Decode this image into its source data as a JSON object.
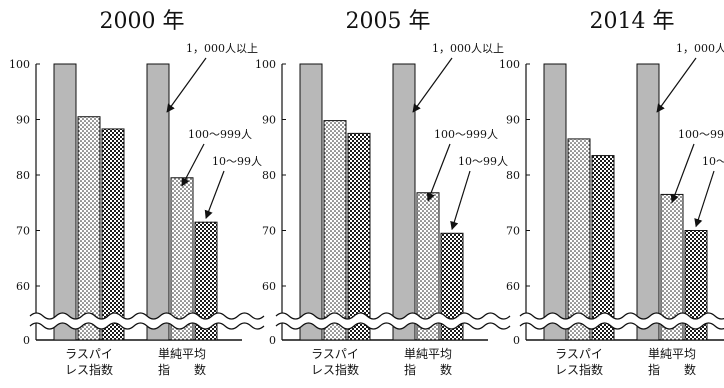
{
  "chart_data": [
    {
      "type": "bar",
      "title": "2000 年",
      "categories": [
        "ラスパイ\nレス指数",
        "単純平均\n指　　数"
      ],
      "series": [
        {
          "name": "1，000人以上",
          "values": [
            100,
            100
          ]
        },
        {
          "name": "100～999人",
          "values": [
            90.5,
            79.5
          ]
        },
        {
          "name": "10～99人",
          "values": [
            88.3,
            71.5
          ]
        }
      ],
      "y_ticks": [
        "0",
        "60",
        "70",
        "80",
        "90",
        "100"
      ],
      "ylim": [
        55,
        100
      ],
      "axis_break": true,
      "grid": false
    },
    {
      "type": "bar",
      "title": "2005 年",
      "categories": [
        "ラスパイ\nレス指数",
        "単純平均\n指　　数"
      ],
      "series": [
        {
          "name": "1，000人以上",
          "values": [
            100,
            100
          ]
        },
        {
          "name": "100～999人",
          "values": [
            89.8,
            76.8
          ]
        },
        {
          "name": "10～99人",
          "values": [
            87.5,
            69.5
          ]
        }
      ],
      "y_ticks": [
        "0",
        "60",
        "70",
        "80",
        "90",
        "100"
      ],
      "ylim": [
        55,
        100
      ],
      "axis_break": true,
      "grid": false
    },
    {
      "type": "bar",
      "title": "2014 年",
      "categories": [
        "ラスパイ\nレス指数",
        "単純平均\n指　　数"
      ],
      "series": [
        {
          "name": "1，000人以上",
          "values": [
            100,
            100
          ]
        },
        {
          "name": "100～999人",
          "values": [
            86.5,
            76.5
          ]
        },
        {
          "name": "10～99人",
          "values": [
            83.5,
            70
          ]
        }
      ],
      "y_ticks": [
        "0",
        "60",
        "70",
        "80",
        "90",
        "100"
      ],
      "ylim": [
        55,
        100
      ],
      "axis_break": true,
      "grid": false
    }
  ]
}
